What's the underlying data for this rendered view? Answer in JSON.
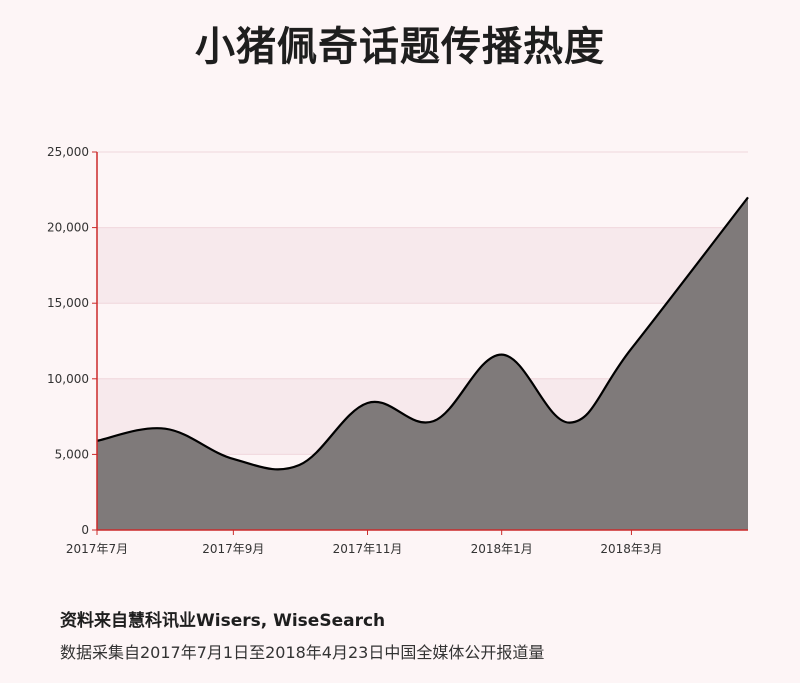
{
  "title": "小猪佩奇话题传播热度",
  "footer": {
    "source": "资料来自慧科讯业Wisers, WiseSearch",
    "note": "数据采集自2017年7月1日至2018年4月23日中国全媒体公开报道量"
  },
  "colors": {
    "area": "#7f7a7a",
    "line": "#000000",
    "axis": "#cc2a2a",
    "band": "#f7e9ec",
    "grid": "#f0d7dc"
  },
  "chart_data": {
    "type": "area",
    "x": [
      "2017-07-01",
      "2017-08-01",
      "2017-09-01",
      "2017-10-01",
      "2017-11-01",
      "2017-12-01",
      "2018-01-01",
      "2018-02-01",
      "2018-03-01",
      "2018-04-23"
    ],
    "values": [
      5900,
      6700,
      4700,
      4300,
      8400,
      7200,
      11600,
      7100,
      12000,
      22000
    ],
    "x_tick_labels": [
      "2017年7月",
      "2017年9月",
      "2017年11月",
      "2018年1月",
      "2018年3月"
    ],
    "y_ticks": [
      0,
      5000,
      10000,
      15000,
      20000,
      25000
    ],
    "y_tick_labels": [
      "0",
      "5,000",
      "10,000",
      "15,000",
      "20,000",
      "25,000"
    ],
    "ylim": [
      0,
      25000
    ],
    "grid": true
  }
}
